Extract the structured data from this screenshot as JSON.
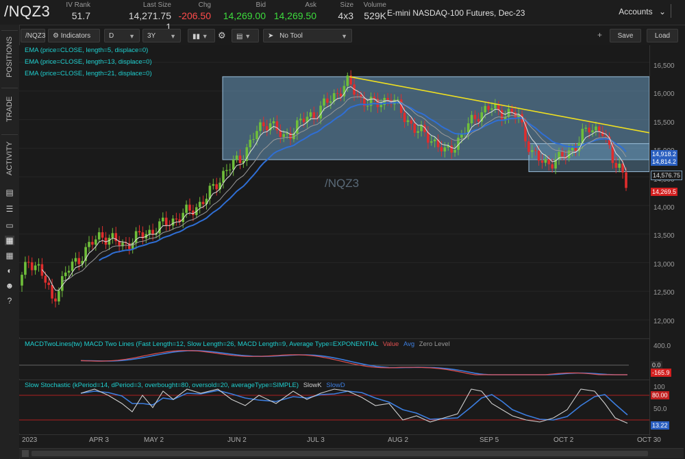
{
  "header": {
    "symbol": "/NQZ3",
    "description": "E-mini NASDAQ-100 Futures, Dec-23",
    "quotes": [
      {
        "label": "IV Rank",
        "value": "51.7",
        "color": "#d8d8d8"
      },
      {
        "label": "Last Size",
        "value": "14,271.75 1",
        "color": "#d8d8d8"
      },
      {
        "label": "Chg",
        "value": "-206.50",
        "color": "#ff4b4b"
      },
      {
        "label": "Bid",
        "value": "14,269.00",
        "color": "#3ddc3d"
      },
      {
        "label": "Ask",
        "value": "14,269.50",
        "color": "#3ddc3d"
      },
      {
        "label": "Size",
        "value": "4x3",
        "color": "#d8d8d8"
      },
      {
        "label": "Volume",
        "value": "529K",
        "color": "#d8d8d8"
      }
    ],
    "accounts_label": "Accounts"
  },
  "left_tabs": [
    "POSITIONS",
    "TRADE",
    "ACTIVITY"
  ],
  "side_icons": [
    "document-icon",
    "list-icon",
    "monitor-icon",
    "chart-icon",
    "grid-icon",
    "gauge-icon",
    "users-icon",
    "help-icon"
  ],
  "toolbar": {
    "symbol": "/NQZ3",
    "indicators": "Indicators",
    "aggregation": "D",
    "timeframe": "3Y",
    "tool": "No Tool",
    "save": "Save",
    "load": "Load",
    "plus": "+"
  },
  "studies": [
    "EMA (price=CLOSE, length=5, displace=0)",
    "EMA (price=CLOSE, length=13, displace=0)",
    "EMA (price=CLOSE, length=21, displace=0)"
  ],
  "watermark": "/NQZ3",
  "macd": {
    "title": "MACDTwoLines(tw) MACD Two Lines (Fast Length=12, Slow Length=26, MACD Length=9, Average Type=EXPONENTIAL",
    "legend_value": "Value",
    "legend_avg": "Avg",
    "legend_zero": "Zero Level",
    "axis_label": "400.0",
    "tag_top": "0.0",
    "tag_bottom": "-165.9"
  },
  "stoch": {
    "title": "Slow Stochastic (kPeriod=14, dPeriod=3, overbought=80, oversold=20, averageType=SIMPLE)",
    "legend_k": "SlowK",
    "legend_d": "SlowD",
    "axis_labels": [
      "100",
      "50.0"
    ],
    "tag_top": "80.00",
    "tag_bottom": "13.22"
  },
  "price_axis": [
    "16,500",
    "16,000",
    "15,500",
    "15,000",
    "14,500",
    "14,000",
    "13,500",
    "13,000",
    "12,500",
    "12,000"
  ],
  "price_tags": {
    "ema_a": "14,918.2",
    "ema_b": "14,814.2",
    "level": "14,576.75",
    "last": "14,269.5"
  },
  "time_axis": [
    "2023",
    "APR 3",
    "MAY 2",
    "JUN 2",
    "JUL 3",
    "AUG 2",
    "SEP 5",
    "OCT 2",
    "OCT 30"
  ],
  "colors": {
    "up": "#6fbf3a",
    "down": "#e02d2d",
    "ema5": "#e0e0e0",
    "ema13": "#9a9a9a",
    "ema21": "#2f6fd6",
    "trendline": "#f0e020",
    "zone": "#6a9bbf"
  }
}
